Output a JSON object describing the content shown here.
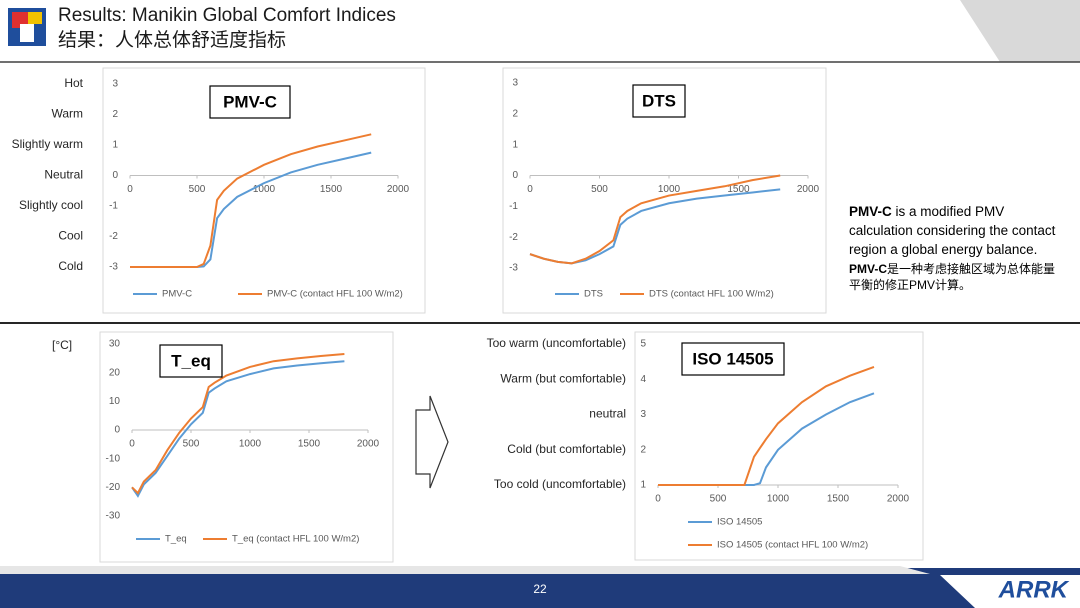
{
  "header": {
    "title": "Results: Manikin Global Comfort Indices",
    "subtitle": "结果：人体总体舒适度指标"
  },
  "chart_data": [
    {
      "type": "line",
      "title": "PMV-C",
      "x": [
        0,
        200,
        400,
        500,
        550,
        600,
        650,
        700,
        800,
        1000,
        1200,
        1400,
        1600,
        1800
      ],
      "series": [
        {
          "name": "PMV-C",
          "color": "#5b9bd5",
          "values": [
            -3,
            -3,
            -3,
            -3,
            -2.98,
            -2.75,
            -1.4,
            -1.1,
            -0.7,
            -0.25,
            0.1,
            0.35,
            0.55,
            0.75
          ]
        },
        {
          "name": "PMV-C (contact HFL 100 W/m2)",
          "color": "#ed7d31",
          "values": [
            -3,
            -3,
            -3,
            -3,
            -2.9,
            -2.3,
            -0.8,
            -0.5,
            -0.1,
            0.35,
            0.7,
            0.95,
            1.15,
            1.35
          ]
        }
      ],
      "xlim": [
        0,
        2000
      ],
      "xticks": [
        0,
        500,
        1000,
        1500,
        2000
      ],
      "ylim": [
        -3,
        3
      ],
      "yticks": [
        -3,
        -2,
        -1,
        0,
        1,
        2,
        3
      ],
      "scale_labels": [
        {
          "value": 3,
          "label": "Hot"
        },
        {
          "value": 2,
          "label": "Warm"
        },
        {
          "value": 1,
          "label": "Slightly warm"
        },
        {
          "value": 0,
          "label": "Neutral"
        },
        {
          "value": -1,
          "label": "Slightly cool"
        },
        {
          "value": -2,
          "label": "Cool"
        },
        {
          "value": -3,
          "label": "Cold"
        }
      ]
    },
    {
      "type": "line",
      "title": "DTS",
      "x": [
        0,
        100,
        200,
        300,
        400,
        500,
        600,
        650,
        700,
        800,
        1000,
        1200,
        1400,
        1600,
        1800
      ],
      "series": [
        {
          "name": "DTS",
          "color": "#5b9bd5",
          "values": [
            -2.55,
            -2.7,
            -2.8,
            -2.85,
            -2.75,
            -2.55,
            -2.3,
            -1.6,
            -1.4,
            -1.15,
            -0.9,
            -0.75,
            -0.65,
            -0.55,
            -0.45
          ]
        },
        {
          "name": "DTS (contact HFL 100 W/m2)",
          "color": "#ed7d31",
          "values": [
            -2.55,
            -2.7,
            -2.8,
            -2.85,
            -2.7,
            -2.45,
            -2.1,
            -1.35,
            -1.15,
            -0.9,
            -0.65,
            -0.5,
            -0.35,
            -0.15,
            0
          ]
        }
      ],
      "xlim": [
        0,
        2000
      ],
      "xticks": [
        0,
        500,
        1000,
        1500,
        2000
      ],
      "ylim": [
        -3,
        3
      ],
      "yticks": [
        -3,
        -2,
        -1,
        0,
        1,
        2,
        3
      ]
    },
    {
      "type": "line",
      "title": "T_eq",
      "y_unit": "[°C]",
      "x": [
        0,
        50,
        100,
        200,
        300,
        400,
        500,
        600,
        650,
        700,
        800,
        1000,
        1200,
        1400,
        1600,
        1800
      ],
      "series": [
        {
          "name": "T_eq",
          "color": "#5b9bd5",
          "values": [
            -20,
            -23,
            -19,
            -15,
            -9,
            -3,
            2,
            6,
            13,
            14.5,
            17,
            19.5,
            21.5,
            22.5,
            23.3,
            24
          ]
        },
        {
          "name": "T_eq (contact HFL 100 W/m2)",
          "color": "#ed7d31",
          "values": [
            -20,
            -22,
            -18,
            -14,
            -7,
            -1,
            4,
            8,
            15,
            16.5,
            19,
            22,
            24,
            25,
            25.8,
            26.5
          ]
        }
      ],
      "xlim": [
        0,
        2000
      ],
      "xticks": [
        0,
        500,
        1000,
        1500,
        2000
      ],
      "ylim": [
        -30,
        30
      ],
      "yticks": [
        -30,
        -20,
        -10,
        0,
        10,
        20,
        30
      ]
    },
    {
      "type": "line",
      "title": "ISO 14505",
      "x": [
        0,
        700,
        720,
        800,
        850,
        900,
        1000,
        1200,
        1400,
        1600,
        1800
      ],
      "series": [
        {
          "name": "ISO 14505",
          "color": "#5b9bd5",
          "values": [
            1,
            1,
            1,
            1,
            1.05,
            1.5,
            2.0,
            2.6,
            3.0,
            3.35,
            3.6
          ]
        },
        {
          "name": "ISO 14505 (contact HFL 100 W/m2)",
          "color": "#ed7d31",
          "values": [
            1,
            1,
            1,
            1.8,
            2.05,
            2.3,
            2.75,
            3.35,
            3.8,
            4.1,
            4.35
          ]
        }
      ],
      "xlim": [
        0,
        2000
      ],
      "xticks": [
        0,
        500,
        1000,
        1500,
        2000
      ],
      "ylim": [
        1,
        5
      ],
      "yticks": [
        1,
        2,
        3,
        4,
        5
      ],
      "scale_labels": [
        {
          "value": 5,
          "label": "Too warm (uncomfortable)"
        },
        {
          "value": 4,
          "label": "Warm (but comfortable)"
        },
        {
          "value": 3,
          "label": "neutral"
        },
        {
          "value": 2,
          "label": "Cold (but comfortable)"
        },
        {
          "value": 1,
          "label": "Too cold (uncomfortable)"
        }
      ]
    }
  ],
  "note": {
    "term": "PMV-C",
    "text": " is a modified PMV calculation considering the contact region a global energy balance.",
    "term_cn": "PMV-C",
    "text_cn": "是一种考虑接触区域为总体能量平衡的修正PMV计算。"
  },
  "footer": {
    "page": "22",
    "logo": "ARRK"
  }
}
